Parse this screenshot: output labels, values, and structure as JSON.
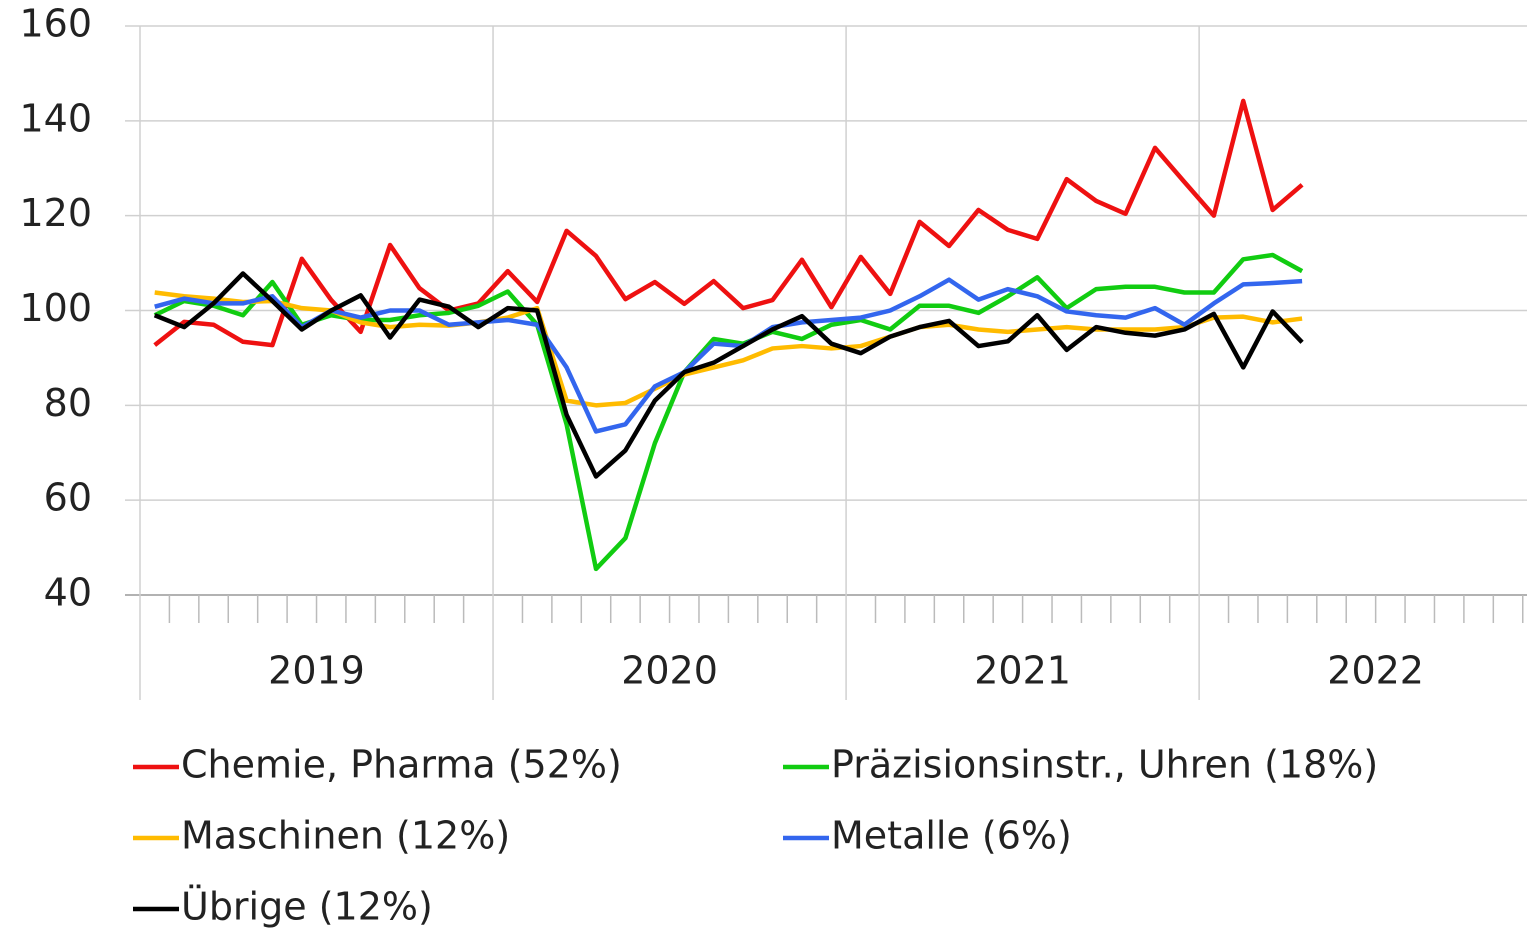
{
  "chart_data": {
    "type": "line",
    "x_labels": [
      "2019",
      "2020",
      "2021",
      "2022"
    ],
    "ylim": [
      40,
      160
    ],
    "yticks": [
      40,
      60,
      80,
      100,
      120,
      140,
      160
    ],
    "grid": true,
    "series": [
      {
        "name": "Chemie, Pharma (52%)",
        "color": "#ee1111",
        "values": [
          92.7,
          97.6,
          97,
          93.4,
          92.7,
          110.9,
          102.2,
          95.5,
          113.8,
          104.7,
          100,
          101.5,
          108.3,
          101.8,
          116.8,
          111.5,
          102.4,
          106,
          101.4,
          106.2,
          100.5,
          102.2,
          110.7,
          100.7,
          111.3,
          103.5,
          118.7,
          113.6,
          121.2,
          117,
          115.1,
          127.7,
          123.1,
          120.4,
          134.3,
          127.1,
          120,
          144.2,
          121.2,
          126.5
        ]
      },
      {
        "name": "Präzisionsinstr., Uhren (18%)",
        "color": "#11cc11",
        "values": [
          99,
          102,
          101,
          99,
          106,
          97,
          99,
          98,
          98,
          99,
          99.5,
          101,
          104,
          97,
          76,
          45.5,
          52,
          72,
          87,
          94,
          93,
          95.5,
          94,
          97,
          98,
          96,
          101,
          101,
          99.5,
          103,
          107,
          100.5,
          104.5,
          105,
          105,
          103.8,
          103.8,
          110.8,
          111.7,
          108.3
        ]
      },
      {
        "name": "Maschinen (12%)",
        "color": "#ffbb00",
        "values": [
          103.8,
          103,
          102.5,
          101.8,
          102,
          100.5,
          100,
          97.5,
          96.5,
          97,
          96.8,
          97.5,
          98.5,
          100.5,
          81,
          80,
          80.5,
          83.5,
          86.5,
          88,
          89.5,
          92,
          92.5,
          92,
          92.5,
          94.5,
          96.5,
          97,
          96,
          95.5,
          96,
          96.5,
          96,
          96,
          96,
          96.5,
          98.5,
          98.7,
          97.5,
          98.3
        ]
      },
      {
        "name": "Metalle (6%)",
        "color": "#3366ee",
        "values": [
          100.8,
          102.5,
          101.5,
          101.5,
          103,
          96.5,
          100,
          98.5,
          100,
          100,
          97,
          97.5,
          98,
          97,
          88,
          74.5,
          76,
          84,
          87,
          93,
          92.5,
          96.5,
          97.5,
          98,
          98.5,
          100,
          103,
          106.5,
          102.3,
          104.5,
          103,
          99.8,
          99,
          98.5,
          100.5,
          97,
          101.5,
          105.5,
          105.8,
          106.2
        ]
      },
      {
        "name": "Übrige (12%)",
        "color": "#000000",
        "values": [
          99,
          96.5,
          101.5,
          107.8,
          102,
          96,
          100,
          103.2,
          94.3,
          102.3,
          100.8,
          96.5,
          100.5,
          100,
          78,
          65,
          70.5,
          81,
          87,
          89,
          92.5,
          96,
          98.8,
          93,
          91,
          94.5,
          96.5,
          97.8,
          92.5,
          93.5,
          99,
          91.7,
          96.5,
          95.3,
          94.7,
          96,
          99.3,
          88,
          99.8,
          93.3
        ]
      }
    ]
  }
}
